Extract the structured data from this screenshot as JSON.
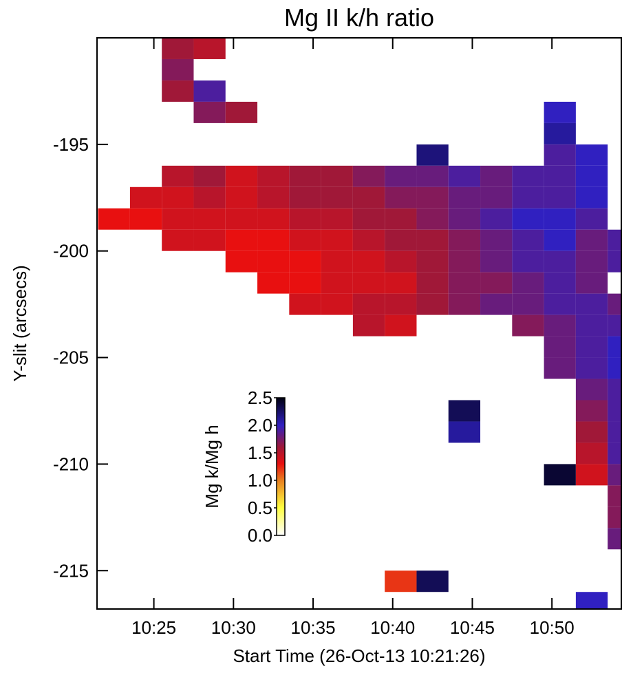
{
  "chart_data": {
    "type": "heatmap",
    "title": "Mg II k/h ratio",
    "x_label": "Start Time (26-Oct-13 10:21:26)",
    "y_label": "Y-slit (arcsecs)",
    "xlim": [
      21.43,
      54.4
    ],
    "ylim": [
      -216.8,
      -190
    ],
    "xticks": [
      {
        "value": 25,
        "label": "10:25"
      },
      {
        "value": 30,
        "label": "10:30"
      },
      {
        "value": 35,
        "label": "10:35"
      },
      {
        "value": 40,
        "label": "10:40"
      },
      {
        "value": 45,
        "label": "10:45"
      },
      {
        "value": 50,
        "label": "10:50"
      }
    ],
    "yticks": [
      -195,
      -200,
      -205,
      -210,
      -215
    ],
    "x": [
      22.5,
      24.5,
      26.5,
      28.5,
      30.5,
      32.5,
      34.5,
      36.5,
      38.5,
      40.5,
      42.5,
      44.5,
      46.5,
      48.5,
      50.5,
      52.5,
      54.5
    ],
    "y": [
      -190.5,
      -191.5,
      -192.5,
      -193.5,
      -194.5,
      -195.5,
      -196.5,
      -197.5,
      -198.5,
      -199.5,
      -200.5,
      -201.5,
      -202.5,
      -203.5,
      -204.5,
      -205.5,
      -206.5,
      -207.5,
      -208.5,
      -209.5,
      -210.5,
      -211.5,
      -212.5,
      -213.5,
      -214.5,
      -215.5,
      -216.5
    ],
    "z": [
      [
        null,
        null,
        1.6,
        1.5,
        null,
        null,
        null,
        null,
        null,
        null,
        null,
        null,
        null,
        null,
        null,
        null,
        null
      ],
      [
        null,
        null,
        1.7,
        null,
        null,
        null,
        null,
        null,
        null,
        null,
        null,
        null,
        null,
        null,
        null,
        null,
        null
      ],
      [
        null,
        null,
        1.6,
        1.9,
        null,
        null,
        null,
        null,
        null,
        null,
        null,
        null,
        null,
        null,
        null,
        null,
        null
      ],
      [
        null,
        null,
        null,
        1.7,
        1.6,
        null,
        null,
        null,
        null,
        null,
        null,
        null,
        null,
        null,
        2.0,
        null,
        null
      ],
      [
        null,
        null,
        null,
        null,
        null,
        null,
        null,
        null,
        null,
        null,
        null,
        null,
        null,
        null,
        2.1,
        null,
        null
      ],
      [
        null,
        null,
        null,
        null,
        null,
        null,
        null,
        null,
        null,
        null,
        2.2,
        null,
        null,
        null,
        1.9,
        2.0,
        null
      ],
      [
        null,
        null,
        1.5,
        1.6,
        1.4,
        1.5,
        1.6,
        1.6,
        1.7,
        1.8,
        1.8,
        1.9,
        1.8,
        1.9,
        1.9,
        2.0,
        null
      ],
      [
        null,
        1.4,
        1.4,
        1.5,
        1.4,
        1.5,
        1.6,
        1.6,
        1.6,
        1.7,
        1.7,
        1.8,
        1.8,
        1.9,
        1.9,
        2.0,
        null
      ],
      [
        1.3,
        1.3,
        1.4,
        1.4,
        1.4,
        1.4,
        1.5,
        1.5,
        1.6,
        1.6,
        1.7,
        1.8,
        1.9,
        2.0,
        2.0,
        1.9,
        null
      ],
      [
        null,
        null,
        1.4,
        1.4,
        1.3,
        1.3,
        1.4,
        1.4,
        1.5,
        1.6,
        1.6,
        1.7,
        1.8,
        1.9,
        2.0,
        1.8,
        1.9
      ],
      [
        null,
        null,
        null,
        null,
        1.3,
        1.3,
        1.3,
        1.4,
        1.4,
        1.5,
        1.6,
        1.7,
        1.8,
        1.9,
        1.9,
        1.8,
        1.9
      ],
      [
        null,
        null,
        null,
        null,
        null,
        1.3,
        1.3,
        1.4,
        1.4,
        1.4,
        1.6,
        1.7,
        1.7,
        1.8,
        1.9,
        1.8,
        null
      ],
      [
        null,
        null,
        null,
        null,
        null,
        null,
        1.4,
        1.4,
        1.5,
        1.5,
        1.6,
        1.7,
        1.8,
        1.8,
        1.9,
        1.9,
        1.8
      ],
      [
        null,
        null,
        null,
        null,
        null,
        null,
        null,
        null,
        1.5,
        1.4,
        null,
        null,
        null,
        1.7,
        1.8,
        1.9,
        1.9
      ],
      [
        null,
        null,
        null,
        null,
        null,
        null,
        null,
        null,
        null,
        null,
        null,
        null,
        null,
        null,
        1.8,
        1.9,
        2.0
      ],
      [
        null,
        null,
        null,
        null,
        null,
        null,
        null,
        null,
        null,
        null,
        null,
        null,
        null,
        null,
        1.8,
        1.9,
        2.0
      ],
      [
        null,
        null,
        null,
        null,
        null,
        null,
        null,
        null,
        null,
        null,
        null,
        null,
        null,
        null,
        null,
        1.8,
        1.9
      ],
      [
        null,
        null,
        null,
        null,
        null,
        null,
        null,
        null,
        null,
        null,
        null,
        2.3,
        null,
        null,
        null,
        1.7,
        1.9
      ],
      [
        null,
        null,
        null,
        null,
        null,
        null,
        null,
        null,
        null,
        null,
        null,
        2.1,
        null,
        null,
        null,
        1.6,
        1.9
      ],
      [
        null,
        null,
        null,
        null,
        null,
        null,
        null,
        null,
        null,
        null,
        null,
        null,
        null,
        null,
        null,
        1.5,
        1.9
      ],
      [
        null,
        null,
        null,
        null,
        null,
        null,
        null,
        null,
        null,
        null,
        null,
        null,
        null,
        null,
        2.4,
        1.4,
        1.8
      ],
      [
        null,
        null,
        null,
        null,
        null,
        null,
        null,
        null,
        null,
        null,
        null,
        null,
        null,
        null,
        null,
        null,
        1.7
      ],
      [
        null,
        null,
        null,
        null,
        null,
        null,
        null,
        null,
        null,
        null,
        null,
        null,
        null,
        null,
        null,
        null,
        1.7
      ],
      [
        null,
        null,
        null,
        null,
        null,
        null,
        null,
        null,
        null,
        null,
        null,
        null,
        null,
        null,
        null,
        null,
        1.8
      ],
      [
        null,
        null,
        null,
        null,
        null,
        null,
        null,
        null,
        null,
        null,
        null,
        null,
        null,
        null,
        null,
        null,
        null
      ],
      [
        null,
        null,
        null,
        null,
        null,
        null,
        null,
        null,
        null,
        1.2,
        2.3,
        null,
        null,
        null,
        null,
        null,
        null
      ],
      [
        null,
        null,
        null,
        null,
        null,
        null,
        null,
        null,
        null,
        null,
        null,
        null,
        null,
        null,
        null,
        2.0,
        null
      ]
    ],
    "colorscale": [
      [
        0,
        "#ffffff"
      ],
      [
        0.5,
        "#ffff40"
      ],
      [
        1.0,
        "#e88020"
      ],
      [
        1.3,
        "#e81010"
      ],
      [
        1.6,
        "#a01838"
      ],
      [
        2.0,
        "#3020c0"
      ],
      [
        2.5,
        "#000010"
      ]
    ],
    "colorbar": {
      "label": "Mg k/Mg h",
      "lim": [
        0,
        2.5
      ],
      "ticks": [
        {
          "value": 0,
          "label": "0.0"
        },
        {
          "value": 0.5,
          "label": "0.5"
        },
        {
          "value": 1,
          "label": "1.0"
        },
        {
          "value": 1.5,
          "label": "1.5"
        },
        {
          "value": 2,
          "label": "2.0"
        },
        {
          "value": 2.5,
          "label": "2.5"
        }
      ]
    }
  }
}
